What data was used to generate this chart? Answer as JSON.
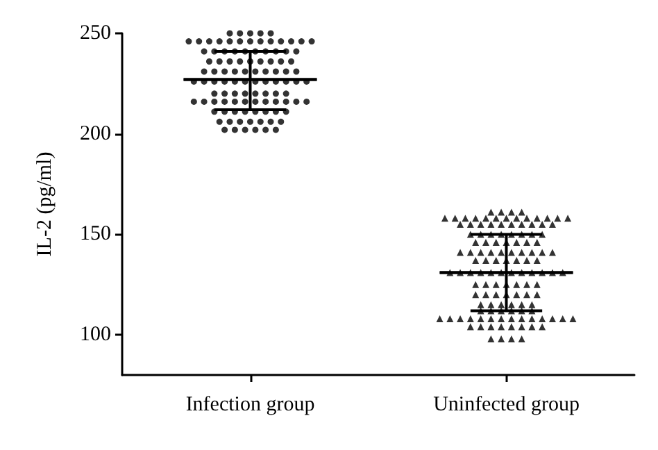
{
  "chart_data": {
    "type": "scatter",
    "ylabel": "IL-2 (pg/ml)",
    "categories": [
      "Infection group",
      "Uninfected group"
    ],
    "ylim": [
      80,
      250
    ],
    "yticks": [
      100,
      150,
      200,
      250
    ],
    "grid": false,
    "series": [
      {
        "marker": "circle",
        "color": "#000000",
        "x": [
          "Infection group",
          "Infection group",
          "Infection group",
          "Infection group",
          "Infection group",
          "Infection group",
          "Infection group",
          "Infection group",
          "Infection group",
          "Infection group",
          "Infection group",
          "Infection group",
          "Infection group",
          "Infection group",
          "Infection group",
          "Infection group",
          "Infection group",
          "Infection group",
          "Infection group",
          "Infection group",
          "Infection group",
          "Infection group",
          "Infection group",
          "Infection group",
          "Infection group",
          "Infection group",
          "Infection group",
          "Infection group",
          "Infection group",
          "Infection group",
          "Infection group",
          "Infection group",
          "Infection group",
          "Infection group",
          "Infection group",
          "Infection group",
          "Infection group",
          "Infection group",
          "Infection group",
          "Infection group",
          "Infection group",
          "Infection group",
          "Infection group",
          "Infection group",
          "Infection group",
          "Infection group",
          "Infection group",
          "Infection group",
          "Infection group",
          "Infection group",
          "Infection group",
          "Infection group",
          "Infection group",
          "Infection group",
          "Infection group",
          "Infection group",
          "Infection group",
          "Infection group",
          "Infection group",
          "Infection group",
          "Infection group",
          "Infection group",
          "Infection group",
          "Infection group",
          "Infection group",
          "Infection group",
          "Infection group",
          "Infection group",
          "Infection group",
          "Infection group",
          "Infection group",
          "Infection group",
          "Infection group",
          "Infection group",
          "Infection group",
          "Infection group",
          "Infection group",
          "Infection group",
          "Infection group",
          "Infection group",
          "Infection group",
          "Infection group",
          "Infection group",
          "Infection group",
          "Infection group",
          "Infection group",
          "Infection group",
          "Infection group",
          "Infection group",
          "Infection group",
          "Infection group",
          "Infection group",
          "Infection group",
          "Infection group",
          "Infection group",
          "Infection group",
          "Infection group",
          "Infection group",
          "Infection group",
          "Infection group"
        ],
        "values": [
          250,
          250,
          250,
          250,
          250,
          246,
          246,
          246,
          246,
          246,
          246,
          246,
          246,
          246,
          246,
          246,
          246,
          246,
          241,
          241,
          241,
          241,
          241,
          241,
          241,
          241,
          241,
          241,
          236,
          236,
          236,
          236,
          236,
          236,
          236,
          236,
          236,
          231,
          231,
          231,
          231,
          231,
          231,
          231,
          231,
          231,
          231,
          226,
          226,
          226,
          226,
          226,
          226,
          226,
          226,
          226,
          226,
          226,
          226,
          220,
          220,
          220,
          220,
          220,
          220,
          220,
          220,
          216,
          216,
          216,
          216,
          216,
          216,
          216,
          216,
          216,
          216,
          216,
          216,
          211,
          211,
          211,
          211,
          211,
          211,
          211,
          211,
          206,
          206,
          206,
          206,
          206,
          206,
          206,
          202,
          202,
          202,
          202,
          202,
          202
        ]
      },
      {
        "marker": "triangle",
        "color": "#000000",
        "x": [
          "Uninfected group",
          "Uninfected group",
          "Uninfected group",
          "Uninfected group",
          "Uninfected group",
          "Uninfected group",
          "Uninfected group",
          "Uninfected group",
          "Uninfected group",
          "Uninfected group",
          "Uninfected group",
          "Uninfected group",
          "Uninfected group",
          "Uninfected group",
          "Uninfected group",
          "Uninfected group",
          "Uninfected group",
          "Uninfected group",
          "Uninfected group",
          "Uninfected group",
          "Uninfected group",
          "Uninfected group",
          "Uninfected group",
          "Uninfected group",
          "Uninfected group",
          "Uninfected group",
          "Uninfected group",
          "Uninfected group",
          "Uninfected group",
          "Uninfected group",
          "Uninfected group",
          "Uninfected group",
          "Uninfected group",
          "Uninfected group",
          "Uninfected group",
          "Uninfected group",
          "Uninfected group",
          "Uninfected group",
          "Uninfected group",
          "Uninfected group",
          "Uninfected group",
          "Uninfected group",
          "Uninfected group",
          "Uninfected group",
          "Uninfected group",
          "Uninfected group",
          "Uninfected group",
          "Uninfected group",
          "Uninfected group",
          "Uninfected group",
          "Uninfected group",
          "Uninfected group",
          "Uninfected group",
          "Uninfected group",
          "Uninfected group",
          "Uninfected group",
          "Uninfected group",
          "Uninfected group",
          "Uninfected group",
          "Uninfected group",
          "Uninfected group",
          "Uninfected group",
          "Uninfected group",
          "Uninfected group",
          "Uninfected group",
          "Uninfected group",
          "Uninfected group",
          "Uninfected group",
          "Uninfected group",
          "Uninfected group",
          "Uninfected group",
          "Uninfected group",
          "Uninfected group",
          "Uninfected group",
          "Uninfected group",
          "Uninfected group",
          "Uninfected group",
          "Uninfected group",
          "Uninfected group",
          "Uninfected group",
          "Uninfected group",
          "Uninfected group",
          "Uninfected group",
          "Uninfected group",
          "Uninfected group",
          "Uninfected group",
          "Uninfected group",
          "Uninfected group",
          "Uninfected group",
          "Uninfected group",
          "Uninfected group",
          "Uninfected group",
          "Uninfected group",
          "Uninfected group",
          "Uninfected group",
          "Uninfected group",
          "Uninfected group",
          "Uninfected group",
          "Uninfected group",
          "Uninfected group",
          "Uninfected group",
          "Uninfected group",
          "Uninfected group",
          "Uninfected group",
          "Uninfected group",
          "Uninfected group",
          "Uninfected group",
          "Uninfected group",
          "Uninfected group",
          "Uninfected group",
          "Uninfected group",
          "Uninfected group",
          "Uninfected group",
          "Uninfected group",
          "Uninfected group",
          "Uninfected group",
          "Uninfected group",
          "Uninfected group",
          "Uninfected group",
          "Uninfected group",
          "Uninfected group",
          "Uninfected group",
          "Uninfected group"
        ],
        "values": [
          161,
          161,
          161,
          161,
          158,
          158,
          158,
          158,
          158,
          158,
          158,
          158,
          158,
          158,
          158,
          158,
          158,
          155,
          155,
          155,
          155,
          155,
          155,
          155,
          155,
          155,
          155,
          150,
          150,
          150,
          150,
          150,
          150,
          150,
          150,
          146,
          146,
          146,
          146,
          146,
          146,
          146,
          141,
          141,
          141,
          141,
          141,
          141,
          141,
          141,
          141,
          141,
          137,
          137,
          137,
          137,
          137,
          137,
          137,
          131,
          131,
          131,
          131,
          131,
          131,
          131,
          131,
          131,
          131,
          131,
          131,
          125,
          125,
          125,
          125,
          125,
          125,
          125,
          120,
          120,
          120,
          120,
          120,
          120,
          120,
          115,
          115,
          115,
          115,
          115,
          115,
          112,
          112,
          112,
          112,
          112,
          112,
          108,
          108,
          108,
          108,
          108,
          108,
          108,
          108,
          108,
          108,
          108,
          108,
          108,
          108,
          104,
          104,
          104,
          104,
          104,
          104,
          104,
          104,
          98,
          98,
          98,
          98
        ]
      },
      {
        "type": "box",
        "color": "#000000",
        "boxes": [
          {
            "low": 212,
            "q1": 227,
            "median": 227,
            "q3": 227,
            "high": 241
          },
          {
            "low": 112,
            "q1": 131,
            "median": 131,
            "q3": 131,
            "high": 150
          }
        ]
      }
    ]
  }
}
